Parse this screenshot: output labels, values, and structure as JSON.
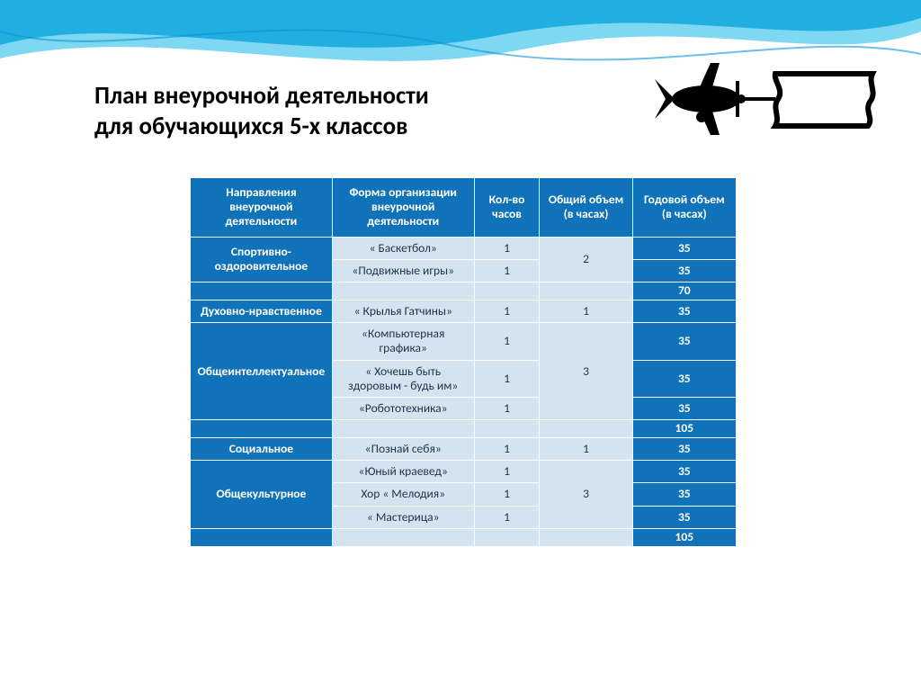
{
  "title_line1": "План внеурочной деятельности",
  "title_line2": "для обучающихся 5-х  классов",
  "colors": {
    "header_bg": "#1073ba",
    "header_fg": "#ffffff",
    "light_bg": "#d4e3ee",
    "light_fg": "#1f3349",
    "border": "#ffffff",
    "wave1": "#0a94d6",
    "wave2": "#16b8e8"
  },
  "columns": [
    "Направления внеурочной деятельности",
    "Форма организации внеурочной деятельности",
    "Кол-во часов",
    "Общий объем (в часах)",
    "Годовой объем (в часах)"
  ],
  "sections": [
    {
      "direction": "Спортивно-оздоровительное",
      "total_volume": "2",
      "rows": [
        {
          "form": "« Баскетбол»",
          "hours": "1",
          "annual": "35"
        },
        {
          "form": "«Подвижные игры»",
          "hours": "1",
          "annual": "35"
        }
      ],
      "subtotal": "70"
    },
    {
      "direction": "Духовно-нравственное",
      "total_volume": "1",
      "rows": [
        {
          "form": "« Крылья Гатчины»",
          "hours": "1",
          "annual": "35"
        }
      ],
      "subtotal": null
    },
    {
      "direction": "Общеинтеллектуальное",
      "total_volume": "3",
      "rows": [
        {
          "form": "«Компьютерная графика»",
          "hours": "1",
          "annual": "35"
        },
        {
          "form": "« Хочешь быть здоровым - будь им»",
          "hours": "1",
          "annual": "35"
        },
        {
          "form": "«Робототехника»",
          "hours": "1",
          "annual": "35"
        }
      ],
      "subtotal": "105"
    },
    {
      "direction": "Социальное",
      "total_volume": "1",
      "rows": [
        {
          "form": "«Познай себя»",
          "hours": "1",
          "annual": "35"
        }
      ],
      "subtotal": null
    },
    {
      "direction": "Общекультурное",
      "total_volume": "3",
      "rows": [
        {
          "form": "«Юный краевед»",
          "hours": "1",
          "annual": "35"
        },
        {
          "form": "Хор « Мелодия»",
          "hours": "1",
          "annual": "35"
        },
        {
          "form": "« Мастерица»",
          "hours": "1",
          "annual": "35"
        }
      ],
      "subtotal": "105"
    }
  ]
}
